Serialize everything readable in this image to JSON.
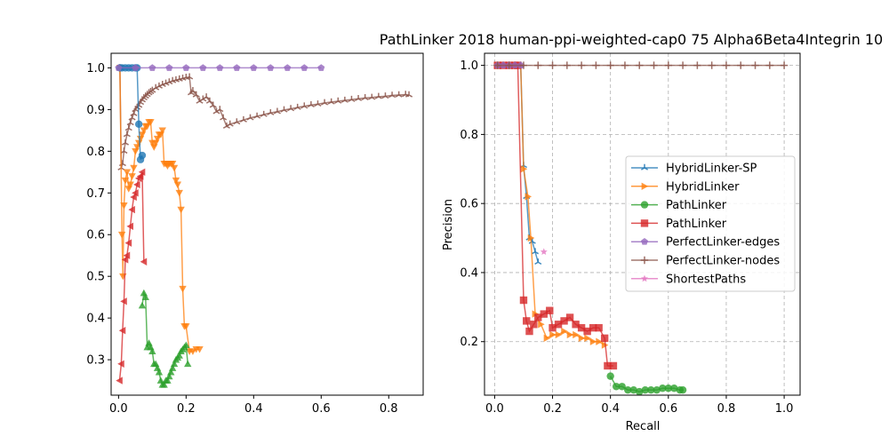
{
  "chart_data": [
    {
      "type": "line",
      "title": "",
      "xlabel": "",
      "ylabel": "",
      "xlim": [
        -0.022,
        0.902
      ],
      "ylim": [
        0.215,
        1.035
      ],
      "xticks": [
        0.0,
        0.2,
        0.4,
        0.6,
        0.8
      ],
      "xtick_labels": [
        "0.0",
        "0.2",
        "0.4",
        "0.6",
        "0.8"
      ],
      "yticks": [
        0.3,
        0.4,
        0.5,
        0.6,
        0.7,
        0.8,
        0.9,
        1.0
      ],
      "ytick_labels": [
        "0.3",
        "0.4",
        "0.5",
        "0.6",
        "0.7",
        "0.8",
        "0.9",
        "1.0"
      ],
      "grid": false,
      "series": [
        {
          "name": "PerfectLinker-nodes",
          "color": "#8c564b",
          "marker": "tri",
          "x": [
            0.004,
            0.008,
            0.012,
            0.016,
            0.02,
            0.025,
            0.03,
            0.035,
            0.04,
            0.045,
            0.05,
            0.055,
            0.06,
            0.065,
            0.07,
            0.075,
            0.08,
            0.085,
            0.09,
            0.095,
            0.1,
            0.11,
            0.12,
            0.13,
            0.14,
            0.15,
            0.16,
            0.17,
            0.18,
            0.19,
            0.2,
            0.21,
            0.215,
            0.22,
            0.23,
            0.24,
            0.25,
            0.26,
            0.27,
            0.28,
            0.29,
            0.3,
            0.31,
            0.32,
            0.33,
            0.35,
            0.37,
            0.39,
            0.41,
            0.43,
            0.45,
            0.47,
            0.49,
            0.51,
            0.53,
            0.55,
            0.57,
            0.59,
            0.61,
            0.63,
            0.65,
            0.67,
            0.69,
            0.71,
            0.73,
            0.75,
            0.77,
            0.79,
            0.81,
            0.83,
            0.85,
            0.86
          ],
          "y": [
            1.0,
            0.76,
            0.77,
            0.8,
            0.82,
            0.84,
            0.855,
            0.868,
            0.88,
            0.89,
            0.9,
            0.905,
            0.91,
            0.917,
            0.923,
            0.928,
            0.932,
            0.936,
            0.94,
            0.943,
            0.946,
            0.952,
            0.956,
            0.96,
            0.963,
            0.966,
            0.969,
            0.971,
            0.973,
            0.975,
            0.977,
            0.978,
            0.94,
            0.945,
            0.935,
            0.92,
            0.925,
            0.93,
            0.92,
            0.91,
            0.895,
            0.9,
            0.88,
            0.86,
            0.865,
            0.87,
            0.875,
            0.88,
            0.884,
            0.888,
            0.892,
            0.895,
            0.899,
            0.902,
            0.905,
            0.908,
            0.911,
            0.913,
            0.916,
            0.918,
            0.92,
            0.922,
            0.924,
            0.926,
            0.928,
            0.929,
            0.931,
            0.932,
            0.934,
            0.935,
            0.936,
            0.935
          ]
        },
        {
          "name": "HybridLinker",
          "color": "#ff7f0e",
          "marker": "tri_down",
          "x": [
            0.004,
            0.01,
            0.013,
            0.016,
            0.02,
            0.025,
            0.03,
            0.035,
            0.04,
            0.045,
            0.05,
            0.055,
            0.06,
            0.065,
            0.07,
            0.075,
            0.08,
            0.085,
            0.09,
            0.095,
            0.1,
            0.105,
            0.11,
            0.115,
            0.12,
            0.125,
            0.13,
            0.135,
            0.14,
            0.145,
            0.15,
            0.155,
            0.16,
            0.165,
            0.17,
            0.175,
            0.18,
            0.185,
            0.19,
            0.195,
            0.2,
            0.21,
            0.22,
            0.23,
            0.24
          ],
          "y": [
            1.0,
            0.6,
            0.5,
            0.67,
            0.73,
            0.75,
            0.71,
            0.72,
            0.74,
            0.76,
            0.8,
            0.81,
            0.82,
            0.83,
            0.84,
            0.85,
            0.86,
            0.86,
            0.87,
            0.87,
            0.82,
            0.81,
            0.82,
            0.83,
            0.84,
            0.84,
            0.85,
            0.77,
            0.77,
            0.765,
            0.77,
            0.77,
            0.77,
            0.76,
            0.73,
            0.72,
            0.7,
            0.66,
            0.47,
            0.38,
            0.38,
            0.32,
            0.32,
            0.325,
            0.325
          ]
        },
        {
          "name": "HybridLinker-SP",
          "color": "#1f77b4",
          "marker": "circle",
          "x": [
            0.004,
            0.01,
            0.02,
            0.03,
            0.04,
            0.05,
            0.055,
            0.06,
            0.065,
            0.07
          ],
          "y": [
            1.0,
            1.0,
            1.0,
            1.0,
            1.0,
            1.0,
            1.0,
            0.865,
            0.78,
            0.79
          ]
        },
        {
          "name": "PathLinker",
          "color": "#2ca02c",
          "marker": "tri_up",
          "x": [
            0.07,
            0.075,
            0.08,
            0.085,
            0.09,
            0.095,
            0.1,
            0.105,
            0.11,
            0.115,
            0.12,
            0.125,
            0.13,
            0.135,
            0.14,
            0.145,
            0.15,
            0.155,
            0.16,
            0.165,
            0.17,
            0.175,
            0.18,
            0.185,
            0.19,
            0.195,
            0.2,
            0.205
          ],
          "y": [
            0.43,
            0.46,
            0.45,
            0.33,
            0.34,
            0.33,
            0.32,
            0.29,
            0.29,
            0.28,
            0.27,
            0.25,
            0.24,
            0.24,
            0.25,
            0.25,
            0.26,
            0.27,
            0.28,
            0.29,
            0.3,
            0.305,
            0.31,
            0.32,
            0.325,
            0.33,
            0.335,
            0.29
          ]
        },
        {
          "name": "PathLinker",
          "color": "#d62728",
          "marker": "tri_left",
          "x": [
            0.003,
            0.008,
            0.012,
            0.016,
            0.02,
            0.025,
            0.03,
            0.035,
            0.04,
            0.045,
            0.05,
            0.055,
            0.06,
            0.065,
            0.07,
            0.075
          ],
          "y": [
            0.25,
            0.29,
            0.37,
            0.44,
            0.54,
            0.55,
            0.58,
            0.62,
            0.66,
            0.69,
            0.7,
            0.72,
            0.735,
            0.74,
            0.75,
            0.535
          ]
        },
        {
          "name": "PerfectLinker-edges",
          "color": "#9467bd",
          "marker": "pentagon",
          "x": [
            0.0,
            0.05,
            0.1,
            0.15,
            0.2,
            0.25,
            0.3,
            0.35,
            0.4,
            0.45,
            0.5,
            0.55,
            0.6
          ],
          "y": [
            1.0,
            1.0,
            1.0,
            1.0,
            1.0,
            1.0,
            1.0,
            1.0,
            1.0,
            1.0,
            1.0,
            1.0,
            1.0
          ]
        }
      ]
    },
    {
      "type": "line",
      "title": "PathLinker 2018 human-ppi-weighted-cap0 75 Alpha6Beta4Integrin 10",
      "xlabel": "Recall",
      "ylabel": "Precision",
      "xlim": [
        -0.035,
        1.055
      ],
      "ylim": [
        0.045,
        1.035
      ],
      "xticks": [
        0.0,
        0.2,
        0.4,
        0.6,
        0.8,
        1.0
      ],
      "xtick_labels": [
        "0.0",
        "0.2",
        "0.4",
        "0.6",
        "0.8",
        "1.0"
      ],
      "yticks": [
        0.2,
        0.4,
        0.6,
        0.8,
        1.0
      ],
      "ytick_labels": [
        "0.2",
        "0.4",
        "0.6",
        "0.8",
        "1.0"
      ],
      "grid": true,
      "legend_position": "center-right",
      "legend": [
        "HybridLinker-SP",
        "HybridLinker",
        "PathLinker",
        "PathLinker",
        "PerfectLinker-edges",
        "PerfectLinker-nodes",
        "ShortestPaths"
      ],
      "series": [
        {
          "name": "HybridLinker-SP",
          "color": "#1f77b4",
          "marker": "tri",
          "x": [
            0.01,
            0.03,
            0.05,
            0.07,
            0.09,
            0.1,
            0.11,
            0.12,
            0.13,
            0.14,
            0.15
          ],
          "y": [
            1.0,
            1.0,
            1.0,
            1.0,
            1.0,
            0.71,
            0.62,
            0.5,
            0.49,
            0.46,
            0.43
          ]
        },
        {
          "name": "HybridLinker",
          "color": "#ff7f0e",
          "marker": "tri_right",
          "x": [
            0.01,
            0.03,
            0.05,
            0.07,
            0.09,
            0.1,
            0.115,
            0.125,
            0.14,
            0.16,
            0.18,
            0.2,
            0.22,
            0.24,
            0.26,
            0.28,
            0.3,
            0.32,
            0.34,
            0.36,
            0.38
          ],
          "y": [
            1.0,
            1.0,
            1.0,
            1.0,
            1.0,
            0.7,
            0.62,
            0.5,
            0.28,
            0.25,
            0.21,
            0.22,
            0.22,
            0.23,
            0.22,
            0.22,
            0.21,
            0.21,
            0.2,
            0.2,
            0.19
          ]
        },
        {
          "name": "PathLinker",
          "color": "#2ca02c",
          "marker": "circle",
          "x": [
            0.4,
            0.42,
            0.44,
            0.46,
            0.48,
            0.5,
            0.52,
            0.54,
            0.56,
            0.58,
            0.6,
            0.62,
            0.64,
            0.65
          ],
          "y": [
            0.1,
            0.07,
            0.07,
            0.06,
            0.06,
            0.055,
            0.06,
            0.06,
            0.06,
            0.065,
            0.065,
            0.065,
            0.06,
            0.06
          ]
        },
        {
          "name": "PathLinker",
          "color": "#d62728",
          "marker": "square",
          "x": [
            0.01,
            0.03,
            0.05,
            0.07,
            0.08,
            0.1,
            0.11,
            0.12,
            0.135,
            0.15,
            0.17,
            0.19,
            0.2,
            0.22,
            0.24,
            0.26,
            0.28,
            0.3,
            0.32,
            0.34,
            0.36,
            0.38,
            0.39,
            0.41
          ],
          "y": [
            1.0,
            1.0,
            1.0,
            1.0,
            1.0,
            0.32,
            0.26,
            0.23,
            0.25,
            0.27,
            0.28,
            0.29,
            0.24,
            0.25,
            0.26,
            0.27,
            0.25,
            0.24,
            0.23,
            0.24,
            0.24,
            0.21,
            0.13,
            0.13
          ]
        },
        {
          "name": "PerfectLinker-edges",
          "color": "#9467bd",
          "marker": "pentagon",
          "x": [
            0.01,
            0.03,
            0.05,
            0.07,
            0.09
          ],
          "y": [
            1.0,
            1.0,
            1.0,
            1.0,
            1.0
          ]
        },
        {
          "name": "PerfectLinker-nodes",
          "color": "#8c564b",
          "marker": "plus",
          "x": [
            0.01,
            0.05,
            0.1,
            0.15,
            0.2,
            0.25,
            0.3,
            0.35,
            0.4,
            0.45,
            0.5,
            0.55,
            0.6,
            0.65,
            0.7,
            0.75,
            0.8,
            0.85,
            0.9,
            0.95,
            1.0
          ],
          "y": [
            1.0,
            1.0,
            1.0,
            1.0,
            1.0,
            1.0,
            1.0,
            1.0,
            1.0,
            1.0,
            1.0,
            1.0,
            1.0,
            1.0,
            1.0,
            1.0,
            1.0,
            1.0,
            1.0,
            1.0,
            1.0
          ]
        },
        {
          "name": "ShortestPaths",
          "color": "#e377c2",
          "marker": "star",
          "x": [
            0.17
          ],
          "y": [
            0.46
          ]
        }
      ]
    }
  ]
}
